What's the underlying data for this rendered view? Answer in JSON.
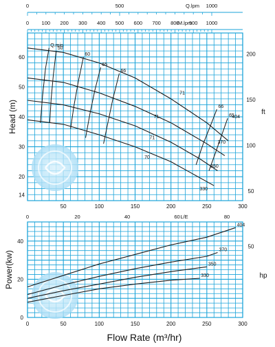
{
  "chart_data": [
    {
      "type": "line",
      "title": "",
      "xlabel": "",
      "ylabel": "Head (m)",
      "ylabel_right": "ft",
      "xlim": [
        0,
        300
      ],
      "ylim": [
        12,
        68
      ],
      "x_ticks": [
        "50",
        "100",
        "150",
        "200",
        "250",
        "300"
      ],
      "y_ticks": [
        "14",
        "20",
        "30",
        "40",
        "50",
        "60"
      ],
      "y2_ticks": [
        "50",
        "100",
        "150",
        "200"
      ],
      "grid": true,
      "top_axes": [
        {
          "unit": "Q.lpm",
          "ticks": [
            "0",
            "500",
            "1000"
          ]
        },
        {
          "unit": "IM.lpm",
          "ticks": [
            "0",
            "100",
            "200",
            "300",
            "400",
            "500",
            "600",
            "700",
            "800",
            "900",
            "1000"
          ]
        }
      ],
      "x2_axis": {
        "unit": "L/E",
        "ticks": [
          "0",
          "20",
          "40",
          "60",
          "80"
        ]
      },
      "qmin_label": "Q.min",
      "series": [
        {
          "name": "404",
          "x": [
            0,
            50,
            100,
            150,
            200,
            250,
            280
          ],
          "values": [
            63,
            61.5,
            58,
            53,
            46,
            38,
            32
          ]
        },
        {
          "name": "370",
          "x": [
            0,
            50,
            100,
            150,
            200,
            250,
            275
          ],
          "values": [
            53,
            51.5,
            48,
            43.5,
            38,
            31,
            27
          ]
        },
        {
          "name": "350",
          "x": [
            0,
            50,
            100,
            150,
            200,
            240,
            265
          ],
          "values": [
            45.5,
            44,
            41,
            37,
            31.5,
            26,
            22
          ]
        },
        {
          "name": "330",
          "x": [
            0,
            50,
            100,
            150,
            200,
            230,
            260
          ],
          "values": [
            39,
            37.5,
            34,
            30,
            25,
            21,
            17
          ]
        }
      ],
      "efficiency_curves": [
        {
          "label": "50",
          "x": [
            31,
            33,
            36,
            40
          ],
          "values": [
            38,
            46,
            54,
            62
          ]
        },
        {
          "label": "60",
          "x": [
            60,
            65,
            71,
            78
          ],
          "values": [
            36,
            44,
            52,
            60
          ]
        },
        {
          "label": "65",
          "x": [
            81,
            87,
            94,
            102
          ],
          "values": [
            33,
            41,
            49,
            56.5
          ]
        },
        {
          "label": "66",
          "x": [
            106,
            112,
            119,
            128
          ],
          "values": [
            31,
            38,
            46,
            54.5
          ]
        },
        {
          "label": "66",
          "x": [
            235,
            245,
            255,
            264
          ],
          "values": [
            24,
            31,
            37,
            42.5
          ]
        },
        {
          "label": "65",
          "x": [
            253,
            262,
            271,
            279
          ],
          "values": [
            22,
            28,
            34,
            39.5
          ]
        },
        {
          "label": "Q.min",
          "x": [
            18,
            21,
            25,
            30
          ],
          "values": [
            38,
            47,
            56,
            63
          ]
        }
      ],
      "efficiency_labels": [
        {
          "text": "71",
          "x": 212,
          "y": 47.5
        },
        {
          "text": "71",
          "x": 176,
          "y": 39.5
        },
        {
          "text": "71",
          "x": 170,
          "y": 32.5
        },
        {
          "text": "70",
          "x": 163,
          "y": 26
        }
      ],
      "series_label_positions": [
        {
          "text": "404",
          "x": 285,
          "y": 39.5
        },
        {
          "text": "370",
          "x": 265,
          "y": 31
        },
        {
          "text": "350",
          "x": 255,
          "y": 23
        },
        {
          "text": "330",
          "x": 240,
          "y": 15.5
        }
      ]
    },
    {
      "type": "line",
      "title": "",
      "xlabel": "Flow Rate (m³/hr)",
      "ylabel": "Power(kw)",
      "ylabel_right": "hp",
      "xlim": [
        0,
        300
      ],
      "ylim": [
        0,
        50
      ],
      "x_ticks": [
        "0",
        "50",
        "100",
        "150",
        "200",
        "250",
        "300"
      ],
      "y_ticks": [
        "0",
        "20",
        "40"
      ],
      "y2_ticks": [
        "50"
      ],
      "grid": true,
      "series": [
        {
          "name": "404",
          "x": [
            0,
            50,
            100,
            150,
            200,
            250,
            290
          ],
          "values": [
            16,
            22,
            28,
            33,
            38,
            42,
            47
          ]
        },
        {
          "name": "370",
          "x": [
            0,
            50,
            100,
            150,
            200,
            250,
            265
          ],
          "values": [
            12,
            17,
            21.5,
            25.5,
            29,
            32,
            34
          ]
        },
        {
          "name": "350",
          "x": [
            0,
            50,
            100,
            150,
            200,
            250
          ],
          "values": [
            10,
            14,
            17.5,
            21,
            24,
            26.5
          ]
        },
        {
          "name": "330",
          "x": [
            0,
            50,
            100,
            150,
            200,
            240
          ],
          "values": [
            8,
            11.5,
            15,
            17.5,
            19.5,
            20.5
          ]
        }
      ]
    }
  ],
  "colors": {
    "grid": "#1aa3d9",
    "curve": "#1a1a1a",
    "text": "#111111",
    "watermark": "#a8dcf5"
  },
  "watermark_icon": "swirl-logo-icon"
}
